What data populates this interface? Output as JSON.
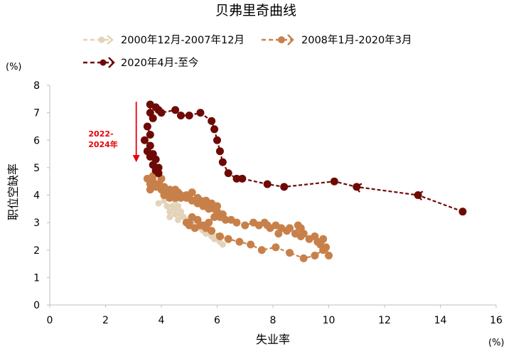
{
  "chart_data": {
    "type": "scatter",
    "title": "贝弗里奇曲线",
    "xlabel": "失业率",
    "ylabel": "职位空缺率",
    "x_unit": "(%)",
    "y_unit": "(%)",
    "xlim": [
      0,
      16
    ],
    "ylim": [
      0,
      8
    ],
    "x_ticks": [
      0,
      2,
      4,
      6,
      8,
      10,
      12,
      14,
      16
    ],
    "y_ticks": [
      0,
      1,
      2,
      3,
      4,
      5,
      6,
      7,
      8
    ],
    "annotation": {
      "lines": [
        "2022-",
        "2024年"
      ],
      "arrow_x": 3.1,
      "arrow_from_y": 7.4,
      "arrow_to_y": 5.2
    },
    "series": [
      {
        "name": "2000年12月-2007年12月",
        "color": "#e3d3b8",
        "dashed": true,
        "points": [
          [
            3.9,
            3.7
          ],
          [
            4.1,
            3.8
          ],
          [
            4.2,
            3.6
          ],
          [
            4.3,
            3.4
          ],
          [
            4.3,
            3.2
          ],
          [
            4.5,
            3.3
          ],
          [
            4.6,
            3.1
          ],
          [
            4.7,
            3.3
          ],
          [
            4.9,
            3.0
          ],
          [
            5.0,
            3.1
          ],
          [
            5.2,
            2.9
          ],
          [
            5.4,
            2.8
          ],
          [
            5.5,
            2.7
          ],
          [
            5.6,
            2.6
          ],
          [
            5.7,
            2.8
          ],
          [
            5.8,
            2.5
          ],
          [
            5.9,
            2.4
          ],
          [
            6.0,
            2.5
          ],
          [
            6.1,
            2.3
          ],
          [
            6.2,
            2.2
          ],
          [
            6.0,
            2.4
          ],
          [
            5.8,
            2.6
          ],
          [
            5.6,
            2.8
          ],
          [
            5.4,
            2.9
          ],
          [
            5.2,
            3.0
          ],
          [
            5.0,
            3.1
          ],
          [
            4.8,
            3.2
          ],
          [
            4.7,
            3.4
          ],
          [
            4.5,
            3.5
          ],
          [
            4.6,
            3.6
          ],
          [
            4.4,
            3.6
          ],
          [
            4.5,
            3.8
          ]
        ]
      },
      {
        "name": "2008年1月-2020年3月",
        "color": "#c8804a",
        "dashed": true,
        "points": [
          [
            4.9,
            3.0
          ],
          [
            5.0,
            2.9
          ],
          [
            5.2,
            2.8
          ],
          [
            5.4,
            2.9
          ],
          [
            5.6,
            2.8
          ],
          [
            5.8,
            2.7
          ],
          [
            6.1,
            2.5
          ],
          [
            6.4,
            2.4
          ],
          [
            6.8,
            2.3
          ],
          [
            7.2,
            2.2
          ],
          [
            7.6,
            2.0
          ],
          [
            8.1,
            2.1
          ],
          [
            8.6,
            1.9
          ],
          [
            9.1,
            1.7
          ],
          [
            9.5,
            1.8
          ],
          [
            9.8,
            2.0
          ],
          [
            10.0,
            1.8
          ],
          [
            9.9,
            2.1
          ],
          [
            9.7,
            2.2
          ],
          [
            9.8,
            2.4
          ],
          [
            9.6,
            2.3
          ],
          [
            9.5,
            2.5
          ],
          [
            9.3,
            2.4
          ],
          [
            9.1,
            2.6
          ],
          [
            9.0,
            2.8
          ],
          [
            9.0,
            2.5
          ],
          [
            8.9,
            2.9
          ],
          [
            8.8,
            2.6
          ],
          [
            8.6,
            2.8
          ],
          [
            8.5,
            2.7
          ],
          [
            8.3,
            2.8
          ],
          [
            8.2,
            2.6
          ],
          [
            8.1,
            2.9
          ],
          [
            7.9,
            2.8
          ],
          [
            7.8,
            2.9
          ],
          [
            7.7,
            3.0
          ],
          [
            7.5,
            2.9
          ],
          [
            7.3,
            3.0
          ],
          [
            7.0,
            2.9
          ],
          [
            6.7,
            3.0
          ],
          [
            6.5,
            3.1
          ],
          [
            6.3,
            3.1
          ],
          [
            6.2,
            3.3
          ],
          [
            6.0,
            3.4
          ],
          [
            6.1,
            3.2
          ],
          [
            5.9,
            3.5
          ],
          [
            5.8,
            3.6
          ],
          [
            5.7,
            3.5
          ],
          [
            5.6,
            3.7
          ],
          [
            5.5,
            3.6
          ],
          [
            5.4,
            3.8
          ],
          [
            5.3,
            3.7
          ],
          [
            5.1,
            3.8
          ],
          [
            5.0,
            3.9
          ],
          [
            4.9,
            4.0
          ],
          [
            4.7,
            3.9
          ],
          [
            4.6,
            4.1
          ],
          [
            4.5,
            3.9
          ],
          [
            4.4,
            4.1
          ],
          [
            4.3,
            4.2
          ],
          [
            4.2,
            4.1
          ],
          [
            4.1,
            4.3
          ],
          [
            4.0,
            4.2
          ],
          [
            3.9,
            4.4
          ],
          [
            3.8,
            4.3
          ],
          [
            3.7,
            4.5
          ],
          [
            3.6,
            4.4
          ],
          [
            3.5,
            4.6
          ],
          [
            3.6,
            4.2
          ],
          [
            3.7,
            4.7
          ],
          [
            3.8,
            4.9
          ],
          [
            4.0,
            4.6
          ],
          [
            4.1,
            4.0
          ],
          [
            4.3,
            3.9
          ],
          [
            4.5,
            4.2
          ],
          [
            4.7,
            4.0
          ],
          [
            4.9,
            3.9
          ],
          [
            5.1,
            4.1
          ],
          [
            5.3,
            3.9
          ],
          [
            5.6,
            3.8
          ],
          [
            5.8,
            3.7
          ],
          [
            6.0,
            3.6
          ],
          [
            6.1,
            3.3
          ],
          [
            5.9,
            3.2
          ],
          [
            5.7,
            3.0
          ],
          [
            5.5,
            2.9
          ],
          [
            5.3,
            3.1
          ],
          [
            5.1,
            3.2
          ],
          [
            5.0,
            3.0
          ]
        ]
      },
      {
        "name": "2020年4月-至今",
        "color": "#6e0a05",
        "dashed": true,
        "points": [
          [
            14.8,
            3.4
          ],
          [
            13.2,
            4.0
          ],
          [
            11.0,
            4.3
          ],
          [
            10.2,
            4.5
          ],
          [
            8.4,
            4.3
          ],
          [
            7.8,
            4.4
          ],
          [
            6.9,
            4.6
          ],
          [
            6.7,
            4.6
          ],
          [
            6.4,
            4.8
          ],
          [
            6.2,
            5.2
          ],
          [
            6.1,
            5.6
          ],
          [
            6.0,
            6.0
          ],
          [
            5.9,
            6.4
          ],
          [
            5.8,
            6.7
          ],
          [
            5.4,
            7.0
          ],
          [
            5.0,
            6.9
          ],
          [
            4.7,
            6.9
          ],
          [
            4.5,
            7.1
          ],
          [
            4.0,
            7.0
          ],
          [
            3.9,
            7.1
          ],
          [
            3.8,
            7.2
          ],
          [
            3.6,
            7.3
          ],
          [
            3.6,
            7.0
          ],
          [
            3.7,
            6.8
          ],
          [
            3.5,
            6.5
          ],
          [
            3.6,
            6.2
          ],
          [
            3.4,
            6.0
          ],
          [
            3.6,
            5.8
          ],
          [
            3.5,
            5.6
          ],
          [
            3.7,
            5.5
          ],
          [
            3.6,
            5.4
          ],
          [
            3.8,
            5.3
          ],
          [
            3.7,
            5.1
          ],
          [
            3.9,
            5.0
          ],
          [
            3.8,
            4.9
          ],
          [
            3.9,
            4.8
          ]
        ]
      }
    ]
  }
}
